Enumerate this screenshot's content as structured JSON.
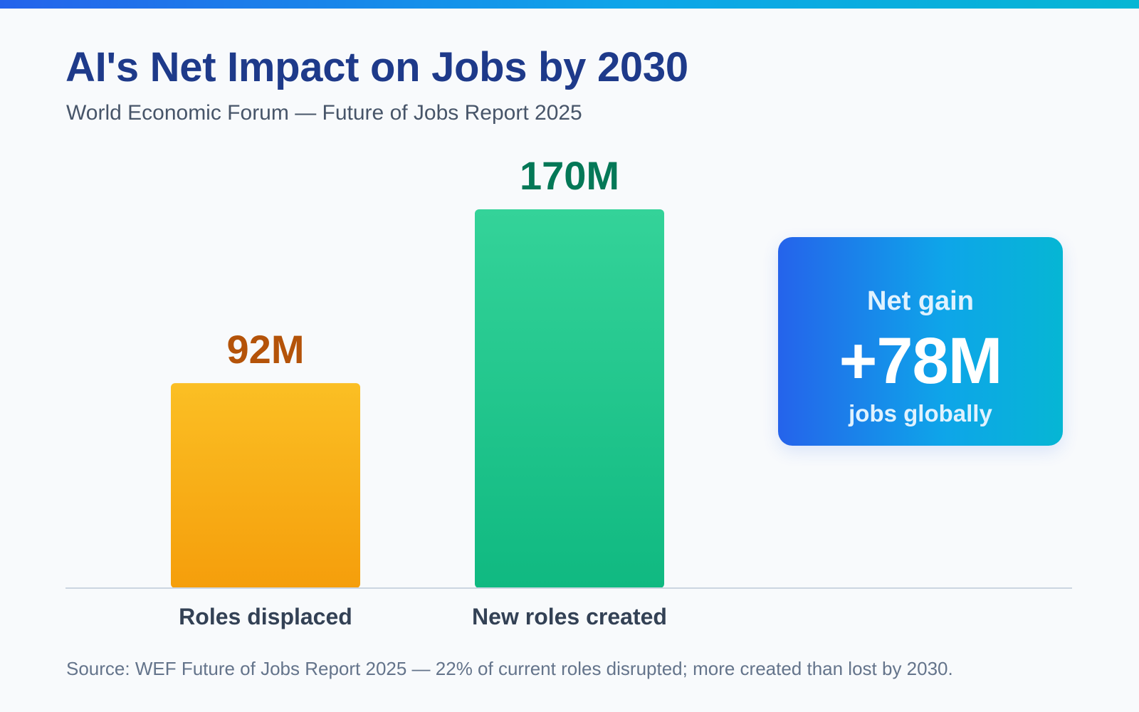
{
  "header": {
    "title": "AI's Net Impact on Jobs by 2030",
    "subtitle": "World Economic Forum — Future of Jobs Report 2025"
  },
  "chart_data": {
    "type": "bar",
    "title": "AI's Net Impact on Jobs by 2030",
    "subtitle": "World Economic Forum — Future of Jobs Report 2025",
    "categories": [
      "Roles displaced",
      "New roles created"
    ],
    "values": [
      92,
      170
    ],
    "value_labels": [
      "92M",
      "170M"
    ],
    "unit": "M",
    "xlabel": "",
    "ylabel": "",
    "ylim": [
      0,
      170
    ],
    "grid": false,
    "legend": "none",
    "colors": {
      "displaced_top": "#fbbf24",
      "displaced_bottom": "#f59e0b",
      "created_top": "#34d399",
      "created_bottom": "#10b981",
      "displaced_label": "#b45309",
      "created_label": "#047857",
      "baseline": "#cbd5e1"
    }
  },
  "net_card": {
    "label": "Net gain",
    "value": "+78M",
    "caption": "jobs globally",
    "gradient_start": "#2563eb",
    "gradient_end": "#06b6d4"
  },
  "footer": {
    "source": "Source: WEF Future of Jobs Report 2025 — 22% of current roles disrupted; more created than lost by 2030."
  }
}
